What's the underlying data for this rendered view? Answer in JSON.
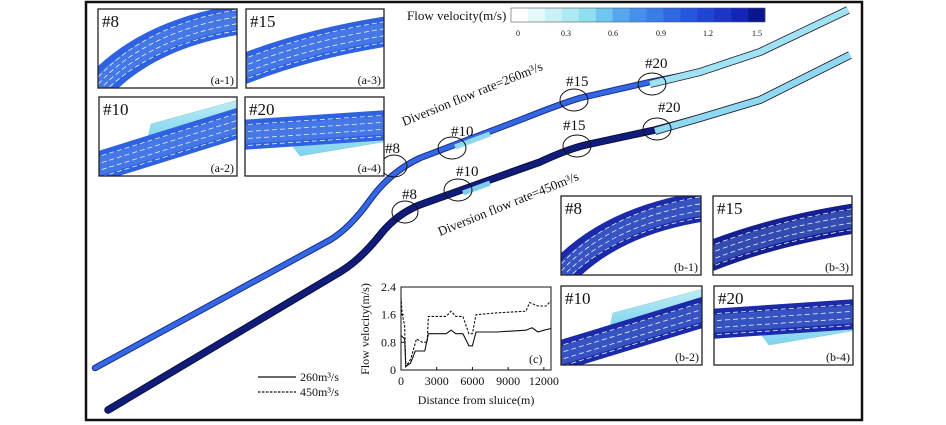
{
  "colorbar": {
    "title": "Flow velocity(m/s)",
    "ticks": [
      "0",
      "0.3",
      "0.6",
      "0.9",
      "1.2",
      "1.5"
    ],
    "colors": [
      "#ffffff",
      "#e3f8fb",
      "#c8f2f7",
      "#aeeaf3",
      "#8fdff0",
      "#6fc6f0",
      "#55a8ee",
      "#4590ec",
      "#3a7ce9",
      "#2f68e5",
      "#2656e0",
      "#1f45d8",
      "#1a35c8",
      "#1225b8",
      "#0a1690"
    ]
  },
  "channels": {
    "upper_label": "Diversion flow rate=260m³/s",
    "lower_label": "Diversion flow rate=450m³/s",
    "upper_markers": [
      "#8",
      "#10",
      "#15",
      "#20"
    ],
    "lower_markers": [
      "#8",
      "#10",
      "#15",
      "#20"
    ],
    "upper_color": "#2f62e0",
    "lower_color": "#0e1a78"
  },
  "insets": {
    "a1": {
      "title": "#8",
      "tag": "(a-1)"
    },
    "a2": {
      "title": "#10",
      "tag": "(a-2)"
    },
    "a3": {
      "title": "#15",
      "tag": "(a-3)"
    },
    "a4": {
      "title": "#20",
      "tag": "(a-4)"
    },
    "b1": {
      "title": "#8",
      "tag": "(b-1)"
    },
    "b2": {
      "title": "#10",
      "tag": "(b-2)"
    },
    "b3": {
      "title": "#15",
      "tag": "(b-3)"
    },
    "b4": {
      "title": "#20",
      "tag": "(b-4)"
    }
  },
  "legend": {
    "solid": "260m³/s",
    "dashed": "450m³/s"
  },
  "chart_data": {
    "type": "line",
    "panel_tag": "(c)",
    "xlabel": "Distance from sluice(m)",
    "ylabel": "Flow velocity(m/s)",
    "xlim": [
      0,
      12600
    ],
    "ylim": [
      0,
      2.4
    ],
    "xticks": [
      0,
      3000,
      6000,
      9000,
      12000
    ],
    "yticks": [
      0,
      0.8,
      1.6,
      2.4
    ],
    "series": [
      {
        "name": "260m³/s",
        "style": "solid",
        "x": [
          0,
          150,
          300,
          400,
          800,
          1200,
          2000,
          2300,
          3800,
          4200,
          4600,
          5200,
          5700,
          6000,
          6300,
          8000,
          10500,
          11000,
          11500,
          12000,
          12600
        ],
        "y": [
          1.0,
          0.95,
          0.9,
          0.1,
          0.2,
          0.55,
          0.55,
          1.05,
          1.05,
          1.15,
          1.05,
          1.05,
          0.7,
          0.7,
          1.1,
          1.1,
          1.15,
          1.22,
          1.1,
          1.15,
          1.2
        ]
      },
      {
        "name": "450m³/s",
        "style": "dashed",
        "x": [
          0,
          100,
          300,
          400,
          800,
          1300,
          1800,
          2200,
          2300,
          3800,
          4200,
          4600,
          5200,
          5700,
          6000,
          6300,
          8000,
          10500,
          10800,
          11500,
          12200,
          12600
        ],
        "y": [
          2.1,
          1.6,
          1.3,
          0.1,
          0.3,
          0.9,
          0.8,
          0.8,
          1.55,
          1.55,
          1.7,
          1.55,
          1.55,
          1.05,
          1.05,
          1.6,
          1.65,
          1.7,
          1.95,
          1.85,
          1.85,
          2.0
        ]
      }
    ]
  }
}
